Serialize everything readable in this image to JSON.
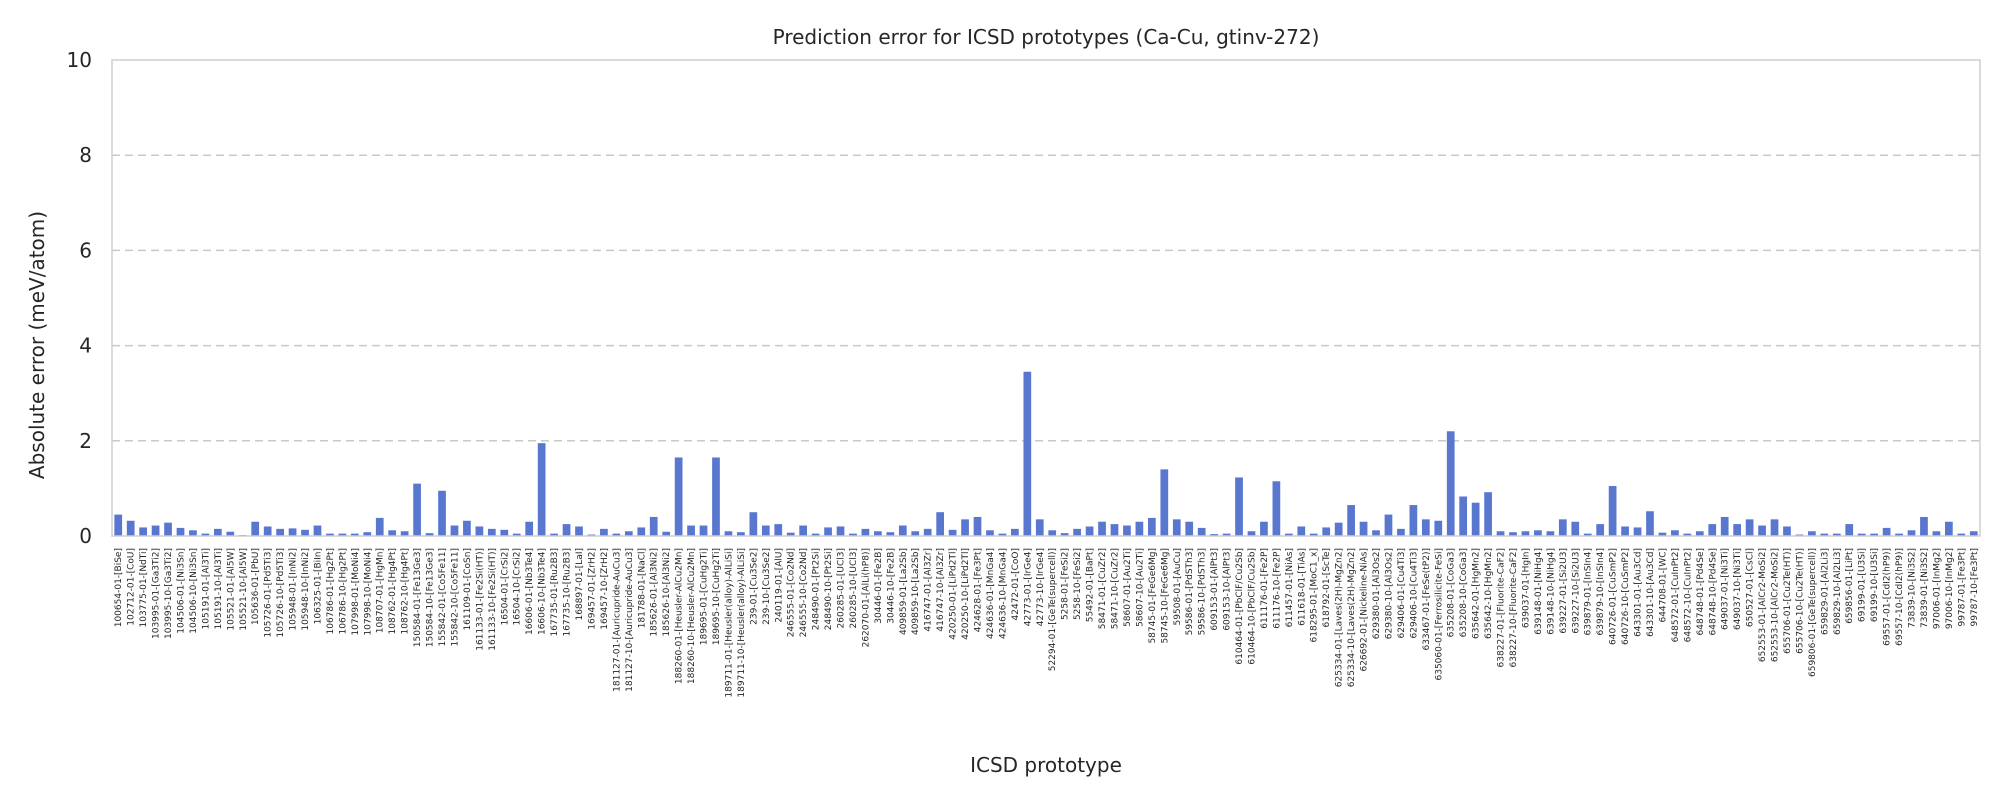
{
  "chart_data": {
    "type": "bar",
    "title": "Prediction error for ICSD prototypes (Ca-Cu, gtinv-272)",
    "xlabel": "ICSD prototype",
    "ylabel": "Absolute error (meV/atom)",
    "ylim": [
      0,
      10
    ],
    "yticks": [
      "0",
      "2",
      "4",
      "6",
      "8",
      "10"
    ],
    "grid": "y-dashed",
    "bar_color": "#5a77d0",
    "categories": [
      "100654-01-[BiSe]",
      "102712-01-[CoU]",
      "103775-01-[NdTi]",
      "103995-01-[Ga3Ti2]",
      "103995-10-[Ga3Ti2]",
      "104506-01-[Ni3Sn]",
      "104506-10-[Ni3Sn]",
      "105191-01-[Al3Ti]",
      "105191-10-[Al3Ti]",
      "105521-01-[Al5W]",
      "105521-10-[Al5W]",
      "105636-01-[PbU]",
      "105726-01-[Pd5Ti3]",
      "105726-10-[Pd5Ti3]",
      "105948-01-[InNi2]",
      "105948-10-[InNi2]",
      "106325-01-[BiIn]",
      "106786-01-[Hg2Pt]",
      "106786-10-[Hg2Pt]",
      "107998-01-[MoNi4]",
      "107998-10-[MoNi4]",
      "108707-01-[HgMn]",
      "108762-01-[Hg4Pt]",
      "108762-10-[Hg4Pt]",
      "150584-01-[Fe13Ge3]",
      "150584-10-[Fe13Ge3]",
      "155842-01-[Co5Fe11]",
      "155842-10-[Co5Fe11]",
      "161109-01-[CoSn]",
      "161133-01-[Fe2Si(HT)]",
      "161133-10-[Fe2Si(HT)]",
      "16504-01-[CrSi2]",
      "16504-10-[CrSi2]",
      "16606-01-[Nb3Te4]",
      "16606-10-[Nb3Te4]",
      "167735-01-[Ru2B3]",
      "167735-10-[Ru2B3]",
      "168897-01-[LaI]",
      "169457-01-[ZrH2]",
      "169457-10-[ZrH2]",
      "181127-01-[Auricupride-AuCu3]",
      "181127-10-[Auricupride-AuCu3]",
      "181788-01-[NaCl]",
      "185626-01-[Al3Ni2]",
      "185626-10-[Al3Ni2]",
      "188260-01-[Heusler-AlCu2Mn]",
      "188260-10-[Heusler-AlCu2Mn]",
      "189695-01-[CuHg2Ti]",
      "189695-10-[CuHg2Ti]",
      "189711-01-[Heusler(alloy)-AlLiSi]",
      "189711-10-[Heusler(alloy)-AlLiSi]",
      "239-01-[Cu3Se2]",
      "239-10-[Cu3Se2]",
      "240119-01-[AlU]",
      "246555-01-[Co2Nd]",
      "246555-10-[Co2Nd]",
      "248490-01-[Pt2Si]",
      "248490-10-[Pt2Si]",
      "260285-01-[UCl3]",
      "260285-10-[UCl3]",
      "262070-01-[AlLi(hP8)]",
      "30446-01-[Fe2B]",
      "30446-10-[Fe2B]",
      "409859-01-[La2Sb]",
      "409859-10-[La2Sb]",
      "416747-01-[Al3Zr]",
      "416747-10-[Al3Zr]",
      "420250-01-[LiPd2Tl]",
      "420250-10-[LiPd2Tl]",
      "424628-01-[Fe3Pt]",
      "424636-01-[MnGa4]",
      "424636-10-[MnGa4]",
      "42472-01-[CoO]",
      "42773-01-[IrGe4]",
      "42773-10-[IrGe4]",
      "52294-01-[GeTe(supercell)]",
      "5258-01-[FeSi2]",
      "5258-10-[FeSi2]",
      "55492-01-[BaPt]",
      "58471-01-[CuZr2]",
      "58471-10-[CuZr2]",
      "58607-01-[Au2Ti]",
      "58607-10-[Au2Ti]",
      "58745-01-[FeGe6Mg]",
      "58745-10-[FeGe6Mg]",
      "59508-01-[AuCu]",
      "59586-01-[PdSTh3]",
      "59586-10-[PdSTh3]",
      "609153-01-[AlPt3]",
      "609153-10-[AlPt3]",
      "610464-01-[PbClF/Cu2Sb]",
      "610464-10-[PbClF/Cu2Sb]",
      "611176-01-[Fe2P]",
      "611176-10-[Fe2P]",
      "611457-01-[NiAs]",
      "611618-01-[TiAs]",
      "618295-01-[MoC1_x]",
      "618792-01-[ScTe]",
      "625334-01-[Laves(2H)-MgZn2]",
      "625334-10-[Laves(2H)-MgZn2]",
      "626692-01-[Nickeline-NiAs]",
      "629380-01-[Al3Os2]",
      "629380-10-[Al3Os2]",
      "629406-01-[Cu4Ti3]",
      "629406-10-[Cu4Ti3]",
      "633467-01-[FeSe(tP2)]",
      "635060-01-[Ferrosilicite-FeSi]",
      "635208-01-[CoGa3]",
      "635208-10-[CoGa3]",
      "635642-01-[HgMn2]",
      "635642-10-[HgMn2]",
      "638227-01-[Fluorite-CaF2]",
      "638227-10-[Fluorite-CaF2]",
      "639037-01-[HgIn]",
      "639148-01-[NiHg4]",
      "639148-10-[NiHg4]",
      "639227-01-[Si2U3]",
      "639227-10-[Si2U3]",
      "639879-01-[InSIn4]",
      "639879-10-[InSIn4]",
      "640726-01-[CuSmP2]",
      "640726-10-[CuSmP2]",
      "643301-01-[Au3Cd]",
      "643301-10-[Au3Cd]",
      "644708-01-[WC]",
      "648572-01-[CuInPt2]",
      "648572-10-[CuInPt2]",
      "648748-01-[Pd4Se]",
      "648748-10-[Pd4Se]",
      "649037-01-[Ni3Ti]",
      "649037-10-[Ni3Ti]",
      "650527-01-[CsCl]",
      "652553-01-[AlCr2-MoSi2]",
      "652553-10-[AlCr2-MoSi2]",
      "655706-01-[Cu2Te(HT)]",
      "655706-10-[Cu2Te(HT)]",
      "659806-01-[GeTe(supercell)]",
      "659829-01-[Al2Li3]",
      "659829-10-[Al2Li3]",
      "659856-01-[LiPt]",
      "69199-01-[U3Si]",
      "69199-10-[U3Si]",
      "69557-01-[CdI2(hP9)]",
      "69557-10-[CdI2(hP9)]",
      "73839-10-[Ni3S2]",
      "73839-01-[Ni3S2]",
      "97006-01-[InMg2]",
      "97006-10-[InMg2]",
      "99787-01-[Fe3Pt]",
      "99787-10-[Fe3Pt]"
    ],
    "values": [
      0.45,
      0.32,
      0.18,
      0.22,
      0.28,
      0.17,
      0.12,
      0.05,
      0.15,
      0.09,
      0.02,
      0.3,
      0.2,
      0.15,
      0.16,
      0.13,
      0.22,
      0.05,
      0.05,
      0.05,
      0.08,
      0.38,
      0.12,
      0.1,
      1.1,
      0.06,
      0.95,
      0.22,
      0.32,
      0.2,
      0.15,
      0.13,
      0.05,
      0.3,
      1.95,
      0.05,
      0.25,
      0.2,
      0.03,
      0.15,
      0.05,
      0.1,
      0.18,
      0.4,
      0.09,
      1.65,
      0.22,
      0.22,
      1.65,
      0.1,
      0.08,
      0.5,
      0.22,
      0.25,
      0.07,
      0.22,
      0.05,
      0.18,
      0.2,
      0.05,
      0.15,
      0.1,
      0.08,
      0.22,
      0.1,
      0.15,
      0.5,
      0.13,
      0.35,
      0.4,
      0.12,
      0.05,
      0.15,
      3.45,
      0.35,
      0.12,
      0.06,
      0.15,
      0.2,
      0.3,
      0.25,
      0.22,
      0.3,
      0.38,
      1.4,
      0.35,
      0.3,
      0.17,
      0.04,
      0.05,
      1.23,
      0.1,
      0.3,
      1.15,
      0.05,
      0.2,
      0.05,
      0.18,
      0.28,
      0.65,
      0.3,
      0.12,
      0.45,
      0.15,
      0.65,
      0.35,
      0.32,
      2.2,
      0.83,
      0.7,
      0.92,
      0.1,
      0.08,
      0.1,
      0.12,
      0.1,
      0.35,
      0.3,
      0.05,
      0.25,
      1.05,
      0.2,
      0.18,
      0.52,
      0.07,
      0.12,
      0.05,
      0.1,
      0.25,
      0.4,
      0.25,
      0.35,
      0.22,
      0.35,
      0.2,
      0.03,
      0.1,
      0.05,
      0.05,
      0.25,
      0.05,
      0.05,
      0.17,
      0.05,
      0.12,
      0.4,
      0.1,
      0.3,
      0.05,
      0.1
    ]
  }
}
